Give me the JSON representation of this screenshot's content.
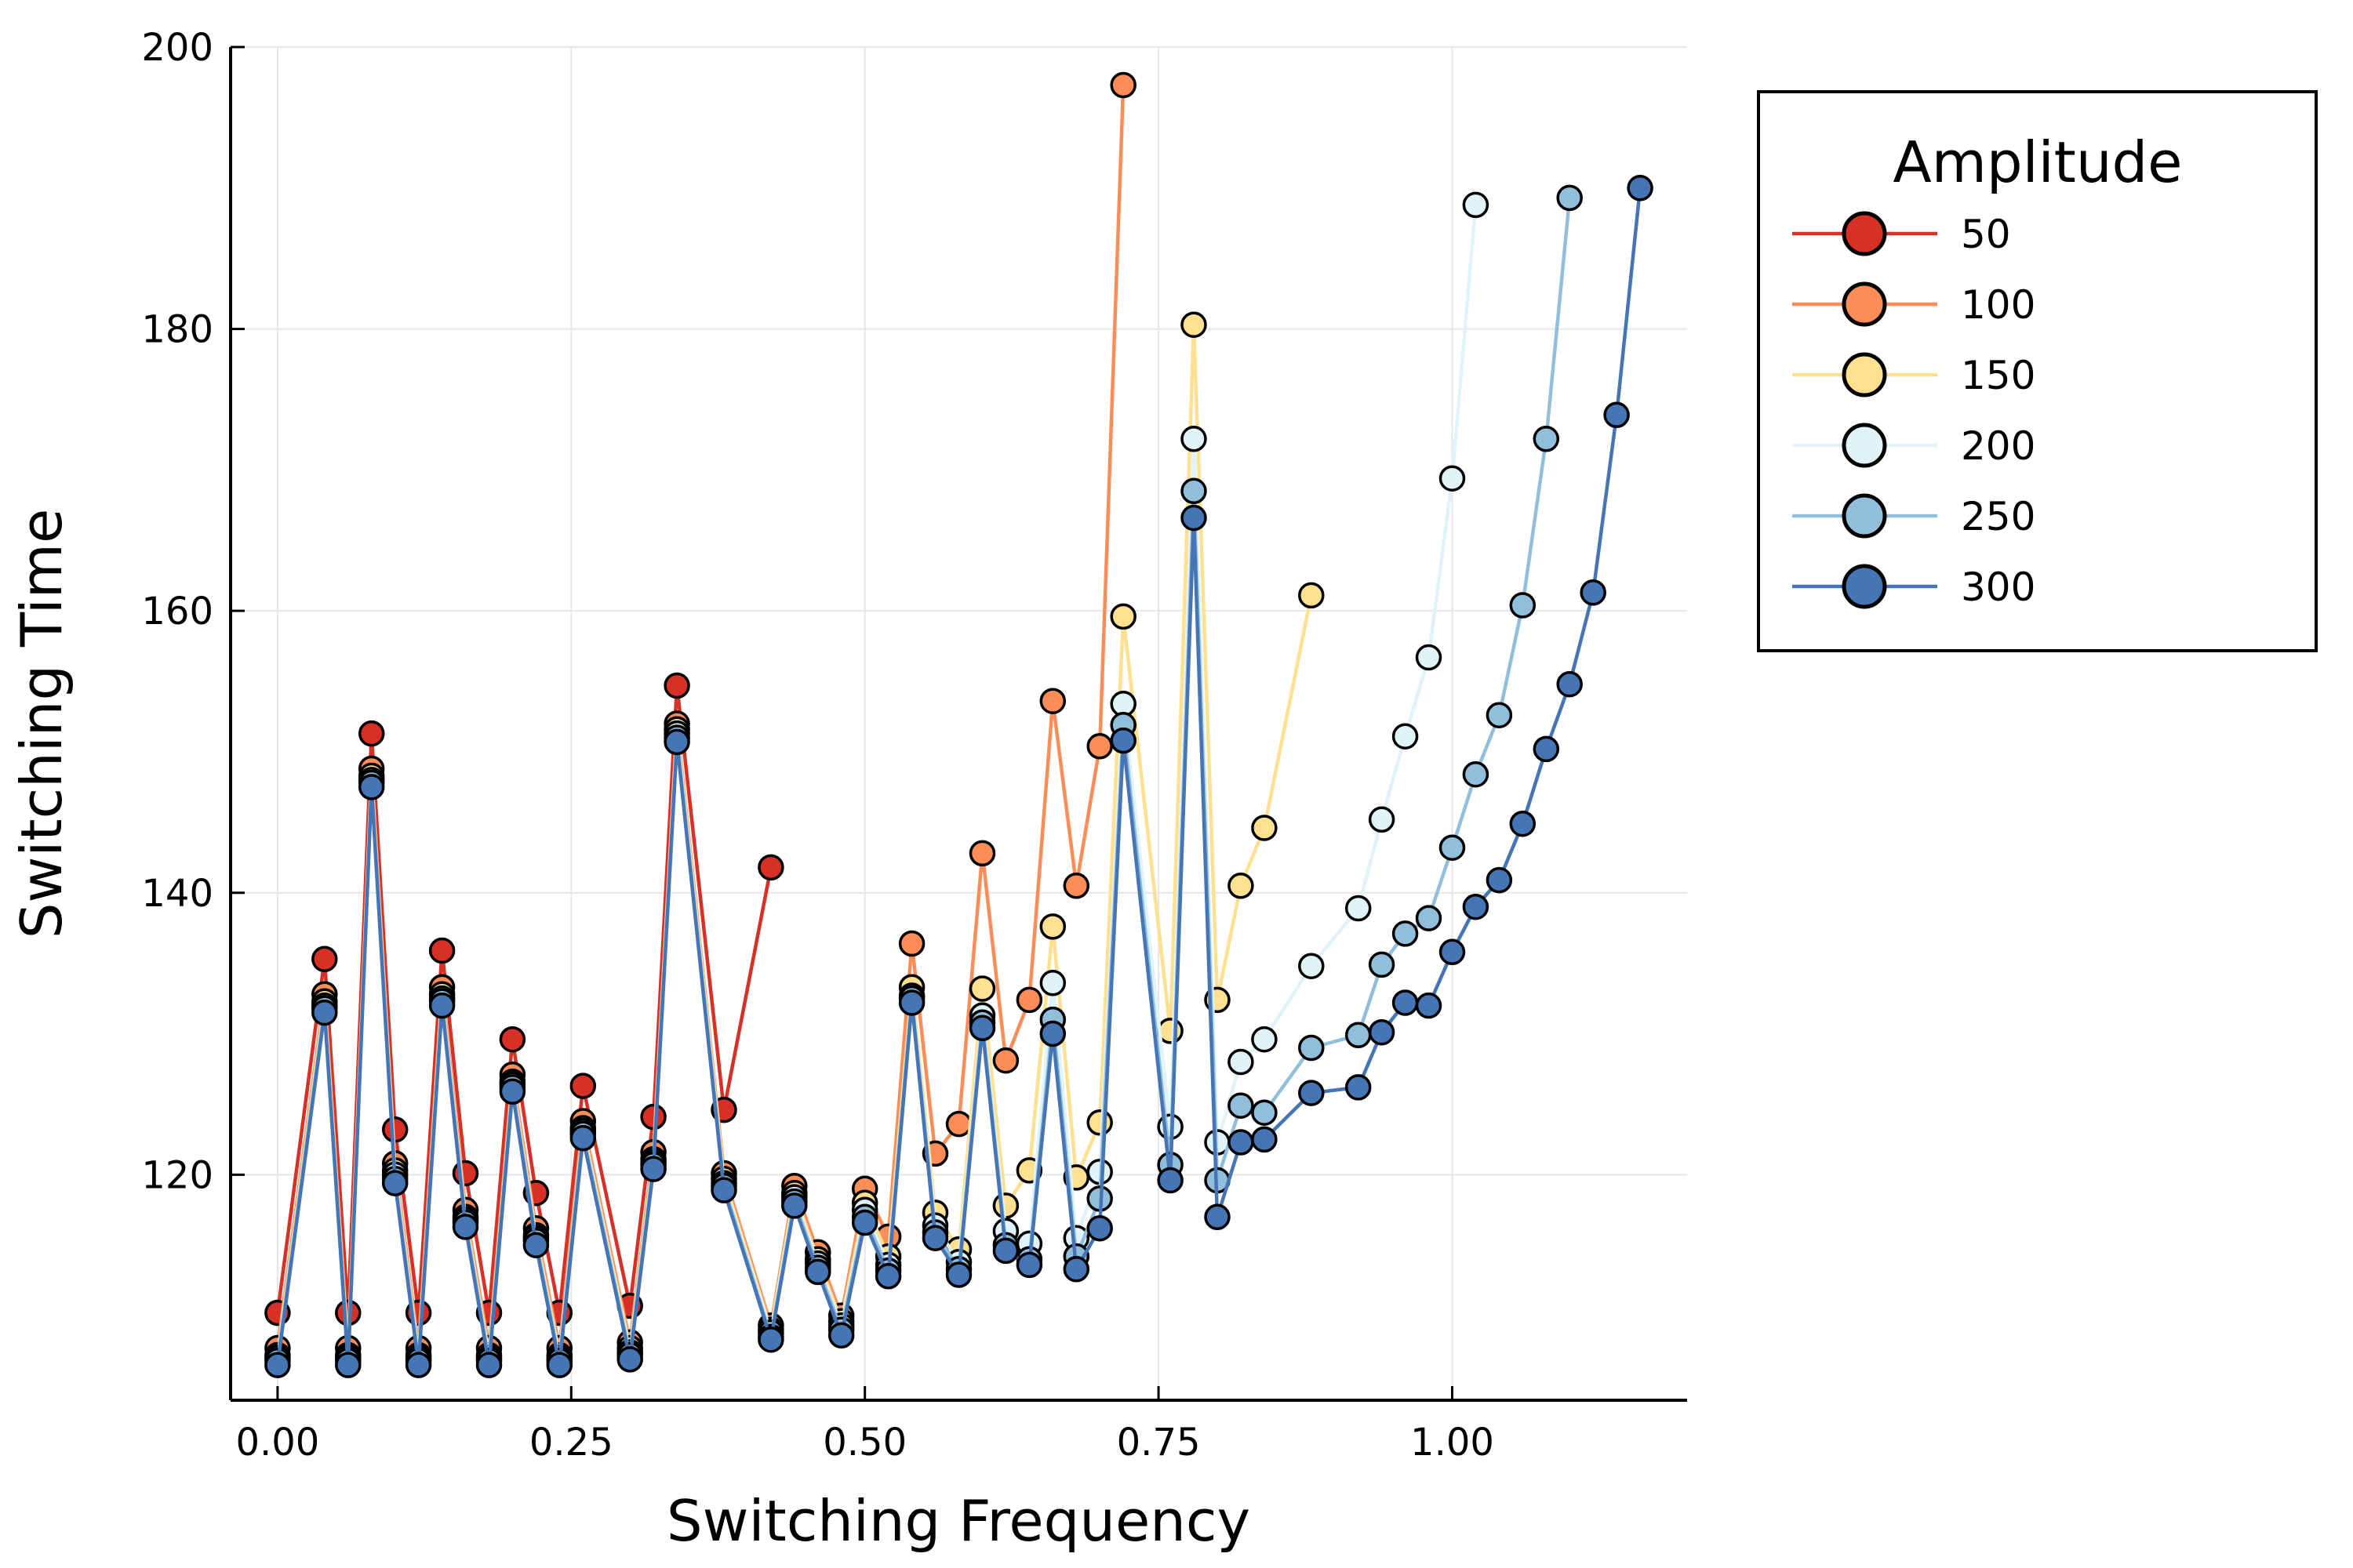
{
  "chart_data": {
    "type": "line",
    "title": "",
    "xlabel": "Switching Frequency",
    "ylabel": "Switching Time",
    "xlim": [
      -0.04,
      1.2
    ],
    "ylim": [
      104,
      200
    ],
    "xticks": [
      0.0,
      0.25,
      0.5,
      0.75,
      1.0
    ],
    "xtick_labels": [
      "0.00",
      "0.25",
      "0.50",
      "0.75",
      "1.00"
    ],
    "yticks": [
      120,
      140,
      160,
      180,
      200
    ],
    "ytick_labels": [
      "120",
      "140",
      "160",
      "180",
      "200"
    ],
    "grid": true,
    "legend": {
      "title": "Amplitude",
      "placement": "outside-top-right"
    },
    "series": [
      {
        "name": "50",
        "color": "#d73027",
        "x": [
          0.0,
          0.04,
          0.06,
          0.08,
          0.1,
          0.12,
          0.14,
          0.16,
          0.18,
          0.2,
          0.22,
          0.24,
          0.26,
          0.3,
          0.32,
          0.34,
          0.38,
          0.42
        ],
        "y": [
          110.2,
          135.3,
          110.2,
          151.3,
          123.2,
          110.2,
          135.9,
          120.1,
          110.2,
          129.6,
          118.7,
          110.2,
          126.3,
          110.7,
          124.1,
          154.7,
          124.6,
          141.8
        ]
      },
      {
        "name": "100",
        "color": "#fc8d59",
        "x": [
          0.0,
          0.04,
          0.06,
          0.08,
          0.1,
          0.12,
          0.14,
          0.16,
          0.18,
          0.2,
          0.22,
          0.24,
          0.26,
          0.3,
          0.32,
          0.34,
          0.38,
          0.42,
          0.44,
          0.46,
          0.48,
          0.5,
          0.52,
          0.54,
          0.56,
          0.58,
          0.6,
          0.62,
          0.64,
          0.66,
          0.68,
          0.7,
          0.72
        ],
        "y": [
          107.7,
          132.8,
          107.7,
          148.8,
          120.8,
          107.7,
          133.3,
          117.5,
          107.7,
          127.1,
          116.2,
          107.7,
          123.8,
          108.1,
          121.6,
          152.0,
          120.1,
          109.3,
          119.2,
          114.5,
          110.0,
          119.0,
          115.6,
          136.4,
          121.5,
          123.6,
          142.8,
          128.1,
          132.4,
          153.6,
          140.5,
          150.4,
          197.3
        ]
      },
      {
        "name": "150",
        "color": "#fee090",
        "x": [
          0.0,
          0.04,
          0.06,
          0.08,
          0.1,
          0.12,
          0.14,
          0.16,
          0.18,
          0.2,
          0.22,
          0.24,
          0.26,
          0.3,
          0.32,
          0.34,
          0.38,
          0.42,
          0.44,
          0.46,
          0.48,
          0.5,
          0.52,
          0.54,
          0.56,
          0.58,
          0.6,
          0.62,
          0.64,
          0.66,
          0.68,
          0.7,
          0.72,
          0.76,
          0.78,
          0.8,
          0.82,
          0.84,
          0.88
        ],
        "y": [
          107.2,
          132.3,
          107.2,
          148.3,
          120.3,
          107.2,
          132.8,
          117.0,
          107.2,
          126.6,
          115.7,
          107.2,
          123.3,
          107.7,
          121.1,
          151.6,
          119.7,
          109.0,
          118.7,
          114.0,
          109.6,
          118.0,
          114.2,
          133.3,
          117.3,
          114.7,
          133.2,
          117.8,
          120.3,
          137.6,
          119.8,
          123.7,
          159.6,
          130.2,
          180.3,
          132.4,
          140.5,
          144.6,
          161.1
        ]
      },
      {
        "name": "200",
        "color": "#e0f3f8",
        "x": [
          0.0,
          0.04,
          0.06,
          0.08,
          0.1,
          0.12,
          0.14,
          0.16,
          0.18,
          0.2,
          0.22,
          0.24,
          0.26,
          0.3,
          0.32,
          0.34,
          0.38,
          0.42,
          0.44,
          0.46,
          0.48,
          0.5,
          0.52,
          0.54,
          0.56,
          0.58,
          0.6,
          0.62,
          0.64,
          0.66,
          0.68,
          0.7,
          0.72,
          0.76,
          0.78,
          0.8,
          0.82,
          0.84,
          0.88,
          0.92,
          0.94,
          0.96,
          0.98,
          1.0,
          1.02
        ],
        "y": [
          107.0,
          132.0,
          107.0,
          148.0,
          120.0,
          107.0,
          132.5,
          116.8,
          107.0,
          126.4,
          115.5,
          107.0,
          123.1,
          107.4,
          120.9,
          151.3,
          119.4,
          108.8,
          118.4,
          113.7,
          109.3,
          117.5,
          113.6,
          132.7,
          116.4,
          113.8,
          131.3,
          116.0,
          115.1,
          133.6,
          115.5,
          120.2,
          153.4,
          123.4,
          172.2,
          122.3,
          128.0,
          129.6,
          134.8,
          138.9,
          145.2,
          151.1,
          156.7,
          169.4,
          188.8
        ]
      },
      {
        "name": "250",
        "color": "#91bfdb",
        "x": [
          0.0,
          0.04,
          0.06,
          0.08,
          0.1,
          0.12,
          0.14,
          0.16,
          0.18,
          0.2,
          0.22,
          0.24,
          0.26,
          0.3,
          0.32,
          0.34,
          0.38,
          0.42,
          0.44,
          0.46,
          0.48,
          0.5,
          0.52,
          0.54,
          0.56,
          0.58,
          0.6,
          0.62,
          0.64,
          0.66,
          0.68,
          0.7,
          0.72,
          0.76,
          0.78,
          0.8,
          0.82,
          0.84,
          0.88,
          0.92,
          0.94,
          0.96,
          0.98,
          1.0,
          1.02,
          1.04,
          1.06,
          1.08,
          1.1
        ],
        "y": [
          106.8,
          131.8,
          106.8,
          147.8,
          119.7,
          106.8,
          132.3,
          116.6,
          106.8,
          126.2,
          115.3,
          106.8,
          122.9,
          107.2,
          120.7,
          151.0,
          119.2,
          108.5,
          118.1,
          113.4,
          109.0,
          117.0,
          113.2,
          132.5,
          115.9,
          113.3,
          130.8,
          115.0,
          114.0,
          131.0,
          114.2,
          118.3,
          151.9,
          120.7,
          168.5,
          119.6,
          124.9,
          124.4,
          129.0,
          129.9,
          134.9,
          137.1,
          138.2,
          143.2,
          148.4,
          152.6,
          160.4,
          172.2,
          189.3
        ]
      },
      {
        "name": "300",
        "color": "#4575b4",
        "x": [
          0.0,
          0.04,
          0.06,
          0.08,
          0.1,
          0.12,
          0.14,
          0.16,
          0.18,
          0.2,
          0.22,
          0.24,
          0.26,
          0.3,
          0.32,
          0.34,
          0.38,
          0.42,
          0.44,
          0.46,
          0.48,
          0.5,
          0.52,
          0.54,
          0.56,
          0.58,
          0.6,
          0.62,
          0.64,
          0.66,
          0.68,
          0.7,
          0.72,
          0.76,
          0.78,
          0.8,
          0.82,
          0.84,
          0.88,
          0.92,
          0.94,
          0.96,
          0.98,
          1.0,
          1.02,
          1.04,
          1.06,
          1.08,
          1.1,
          1.12,
          1.14,
          1.16
        ],
        "y": [
          106.5,
          131.5,
          106.5,
          147.5,
          119.4,
          106.5,
          132.0,
          116.3,
          106.5,
          125.9,
          115.0,
          106.5,
          122.6,
          106.9,
          120.4,
          150.7,
          118.9,
          108.3,
          117.8,
          113.1,
          108.6,
          116.6,
          112.8,
          132.2,
          115.5,
          112.9,
          130.4,
          114.6,
          113.6,
          130.0,
          113.3,
          116.2,
          150.8,
          119.6,
          166.6,
          117.0,
          122.3,
          122.5,
          125.8,
          126.2,
          130.1,
          132.2,
          132.0,
          135.8,
          139.0,
          140.9,
          144.9,
          150.2,
          154.8,
          161.3,
          173.9,
          190.0
        ]
      }
    ]
  }
}
